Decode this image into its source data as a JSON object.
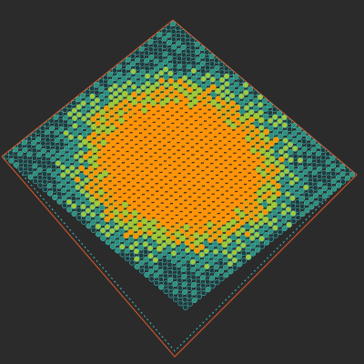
{
  "scene": {
    "background": "#2b2b2b",
    "grid": {
      "rows": 38,
      "cols": 38
    },
    "colors": {
      "core": "#ff9408",
      "inner_ring": "#9fc83a",
      "mid_ring": "#2f8f7a",
      "outer_ring": "#45b7b5",
      "shadow": "#1e3b3d",
      "frame": "#e05a2a",
      "frame_inner": "#49c0c8"
    },
    "falloff": {
      "core": 0.55,
      "inner": 0.7,
      "mid": 0.85
    }
  }
}
